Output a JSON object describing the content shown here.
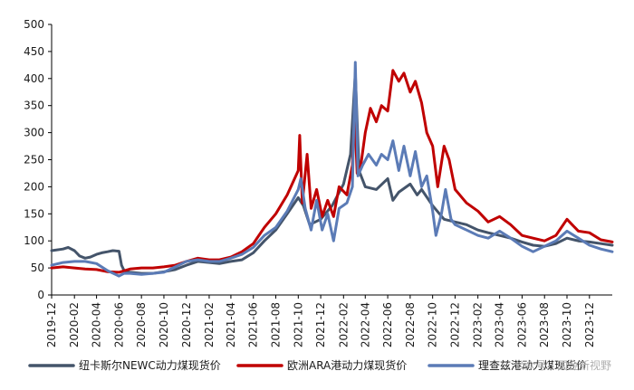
{
  "watermark": "公众号 · 国金新视野",
  "chart_data": {
    "type": "line",
    "ylim": [
      0,
      500
    ],
    "yticks": [
      0,
      50,
      100,
      150,
      200,
      250,
      300,
      350,
      400,
      450,
      500
    ],
    "xlim": [
      "2019-12",
      "2024-02"
    ],
    "xticks": [
      "2019-12",
      "2020-02",
      "2020-04",
      "2020-06",
      "2020-08",
      "2020-10",
      "2020-12",
      "2021-02",
      "2021-04",
      "2021-06",
      "2021-08",
      "2021-10",
      "2021-12",
      "2022-02",
      "2022-04",
      "2022-06",
      "2022-08",
      "2022-10",
      "2022-12",
      "2023-02",
      "2023-04",
      "2023-06",
      "2023-08",
      "2023-10",
      "2023-12"
    ],
    "legend_position": "bottom",
    "series": [
      {
        "name": "纽卡斯尔NEWC动力煤现货价",
        "color": "#44546a",
        "points": [
          [
            "2019-12-01",
            82
          ],
          [
            "2020-01-01",
            85
          ],
          [
            "2020-01-15",
            88
          ],
          [
            "2020-02-01",
            82
          ],
          [
            "2020-02-15",
            72
          ],
          [
            "2020-03-01",
            68
          ],
          [
            "2020-03-15",
            70
          ],
          [
            "2020-04-01",
            75
          ],
          [
            "2020-04-15",
            78
          ],
          [
            "2020-05-01",
            80
          ],
          [
            "2020-05-15",
            82
          ],
          [
            "2020-06-01",
            81
          ],
          [
            "2020-06-08",
            55
          ],
          [
            "2020-06-15",
            45
          ],
          [
            "2020-07-01",
            42
          ],
          [
            "2020-08-01",
            40
          ],
          [
            "2020-09-01",
            40
          ],
          [
            "2020-10-01",
            43
          ],
          [
            "2020-11-01",
            47
          ],
          [
            "2020-12-01",
            55
          ],
          [
            "2021-01-01",
            62
          ],
          [
            "2021-02-01",
            60
          ],
          [
            "2021-03-01",
            58
          ],
          [
            "2021-04-01",
            62
          ],
          [
            "2021-05-01",
            65
          ],
          [
            "2021-06-01",
            78
          ],
          [
            "2021-07-01",
            100
          ],
          [
            "2021-08-01",
            120
          ],
          [
            "2021-09-01",
            150
          ],
          [
            "2021-10-01",
            180
          ],
          [
            "2021-10-15",
            165
          ],
          [
            "2021-11-01",
            130
          ],
          [
            "2021-12-01",
            140
          ],
          [
            "2022-01-01",
            165
          ],
          [
            "2022-02-01",
            205
          ],
          [
            "2022-02-20",
            260
          ],
          [
            "2022-03-05",
            410
          ],
          [
            "2022-03-15",
            230
          ],
          [
            "2022-04-01",
            200
          ],
          [
            "2022-05-01",
            195
          ],
          [
            "2022-06-01",
            215
          ],
          [
            "2022-06-15",
            175
          ],
          [
            "2022-07-01",
            190
          ],
          [
            "2022-08-01",
            205
          ],
          [
            "2022-08-20",
            185
          ],
          [
            "2022-09-01",
            195
          ],
          [
            "2022-10-01",
            165
          ],
          [
            "2022-11-01",
            140
          ],
          [
            "2022-12-01",
            135
          ],
          [
            "2023-01-01",
            130
          ],
          [
            "2023-02-01",
            120
          ],
          [
            "2023-03-01",
            115
          ],
          [
            "2023-04-01",
            110
          ],
          [
            "2023-05-01",
            105
          ],
          [
            "2023-06-01",
            98
          ],
          [
            "2023-07-01",
            92
          ],
          [
            "2023-08-01",
            90
          ],
          [
            "2023-09-01",
            95
          ],
          [
            "2023-10-01",
            105
          ],
          [
            "2023-11-01",
            100
          ],
          [
            "2023-12-01",
            98
          ],
          [
            "2024-01-01",
            95
          ],
          [
            "2024-02-01",
            92
          ]
        ]
      },
      {
        "name": "欧洲ARA港动力煤现货价",
        "color": "#c00000",
        "points": [
          [
            "2019-12-01",
            50
          ],
          [
            "2020-01-01",
            52
          ],
          [
            "2020-02-01",
            50
          ],
          [
            "2020-03-01",
            48
          ],
          [
            "2020-04-01",
            47
          ],
          [
            "2020-05-01",
            43
          ],
          [
            "2020-06-01",
            42
          ],
          [
            "2020-07-01",
            48
          ],
          [
            "2020-08-01",
            50
          ],
          [
            "2020-09-01",
            50
          ],
          [
            "2020-10-01",
            52
          ],
          [
            "2020-11-01",
            55
          ],
          [
            "2020-12-01",
            62
          ],
          [
            "2021-01-01",
            68
          ],
          [
            "2021-02-01",
            65
          ],
          [
            "2021-03-01",
            65
          ],
          [
            "2021-04-01",
            70
          ],
          [
            "2021-05-01",
            80
          ],
          [
            "2021-06-01",
            95
          ],
          [
            "2021-07-01",
            125
          ],
          [
            "2021-08-01",
            150
          ],
          [
            "2021-09-01",
            185
          ],
          [
            "2021-10-01",
            230
          ],
          [
            "2021-10-05",
            295
          ],
          [
            "2021-10-12",
            170
          ],
          [
            "2021-10-25",
            260
          ],
          [
            "2021-11-05",
            160
          ],
          [
            "2021-11-20",
            195
          ],
          [
            "2021-12-05",
            145
          ],
          [
            "2021-12-20",
            175
          ],
          [
            "2022-01-05",
            145
          ],
          [
            "2022-01-20",
            200
          ],
          [
            "2022-02-10",
            185
          ],
          [
            "2022-02-25",
            240
          ],
          [
            "2022-03-03",
            340
          ],
          [
            "2022-03-10",
            225
          ],
          [
            "2022-03-20",
            240
          ],
          [
            "2022-04-01",
            300
          ],
          [
            "2022-04-15",
            345
          ],
          [
            "2022-05-01",
            320
          ],
          [
            "2022-05-15",
            350
          ],
          [
            "2022-06-01",
            340
          ],
          [
            "2022-06-15",
            415
          ],
          [
            "2022-07-01",
            395
          ],
          [
            "2022-07-15",
            410
          ],
          [
            "2022-08-01",
            375
          ],
          [
            "2022-08-15",
            395
          ],
          [
            "2022-09-01",
            355
          ],
          [
            "2022-09-15",
            300
          ],
          [
            "2022-10-01",
            275
          ],
          [
            "2022-10-15",
            200
          ],
          [
            "2022-11-01",
            275
          ],
          [
            "2022-11-15",
            250
          ],
          [
            "2022-12-01",
            195
          ],
          [
            "2023-01-01",
            170
          ],
          [
            "2023-02-01",
            155
          ],
          [
            "2023-03-01",
            135
          ],
          [
            "2023-04-01",
            145
          ],
          [
            "2023-05-01",
            130
          ],
          [
            "2023-06-01",
            110
          ],
          [
            "2023-07-01",
            105
          ],
          [
            "2023-08-01",
            100
          ],
          [
            "2023-09-01",
            110
          ],
          [
            "2023-10-01",
            140
          ],
          [
            "2023-10-15",
            130
          ],
          [
            "2023-11-01",
            118
          ],
          [
            "2023-12-01",
            115
          ],
          [
            "2024-01-01",
            102
          ],
          [
            "2024-02-01",
            98
          ]
        ]
      },
      {
        "name": "理查兹港动力煤现货价",
        "color": "#5b7bb6",
        "points": [
          [
            "2019-12-01",
            55
          ],
          [
            "2020-01-01",
            60
          ],
          [
            "2020-02-01",
            62
          ],
          [
            "2020-03-01",
            62
          ],
          [
            "2020-04-01",
            58
          ],
          [
            "2020-05-01",
            45
          ],
          [
            "2020-06-01",
            35
          ],
          [
            "2020-06-15",
            40
          ],
          [
            "2020-07-01",
            40
          ],
          [
            "2020-08-01",
            38
          ],
          [
            "2020-09-01",
            40
          ],
          [
            "2020-10-01",
            42
          ],
          [
            "2020-11-01",
            52
          ],
          [
            "2020-12-01",
            62
          ],
          [
            "2021-01-01",
            65
          ],
          [
            "2021-02-01",
            62
          ],
          [
            "2021-03-01",
            62
          ],
          [
            "2021-04-01",
            68
          ],
          [
            "2021-05-01",
            75
          ],
          [
            "2021-06-01",
            88
          ],
          [
            "2021-07-01",
            110
          ],
          [
            "2021-08-01",
            125
          ],
          [
            "2021-09-01",
            155
          ],
          [
            "2021-10-01",
            195
          ],
          [
            "2021-10-08",
            215
          ],
          [
            "2021-10-20",
            160
          ],
          [
            "2021-11-05",
            120
          ],
          [
            "2021-11-20",
            175
          ],
          [
            "2021-12-05",
            120
          ],
          [
            "2021-12-20",
            150
          ],
          [
            "2022-01-05",
            100
          ],
          [
            "2022-01-20",
            160
          ],
          [
            "2022-02-10",
            170
          ],
          [
            "2022-02-25",
            200
          ],
          [
            "2022-03-05",
            430
          ],
          [
            "2022-03-12",
            220
          ],
          [
            "2022-03-25",
            240
          ],
          [
            "2022-04-10",
            260
          ],
          [
            "2022-05-01",
            240
          ],
          [
            "2022-05-15",
            260
          ],
          [
            "2022-06-01",
            250
          ],
          [
            "2022-06-15",
            285
          ],
          [
            "2022-07-01",
            230
          ],
          [
            "2022-07-15",
            275
          ],
          [
            "2022-08-01",
            220
          ],
          [
            "2022-08-15",
            265
          ],
          [
            "2022-09-01",
            200
          ],
          [
            "2022-09-15",
            220
          ],
          [
            "2022-10-01",
            155
          ],
          [
            "2022-10-10",
            110
          ],
          [
            "2022-10-25",
            150
          ],
          [
            "2022-11-05",
            195
          ],
          [
            "2022-11-20",
            140
          ],
          [
            "2022-12-01",
            130
          ],
          [
            "2023-01-01",
            120
          ],
          [
            "2023-02-01",
            110
          ],
          [
            "2023-03-01",
            105
          ],
          [
            "2023-04-01",
            118
          ],
          [
            "2023-05-01",
            105
          ],
          [
            "2023-06-01",
            90
          ],
          [
            "2023-07-01",
            80
          ],
          [
            "2023-08-01",
            90
          ],
          [
            "2023-09-01",
            100
          ],
          [
            "2023-10-01",
            118
          ],
          [
            "2023-11-01",
            105
          ],
          [
            "2023-12-01",
            92
          ],
          [
            "2024-01-01",
            85
          ],
          [
            "2024-02-01",
            80
          ]
        ]
      }
    ]
  }
}
